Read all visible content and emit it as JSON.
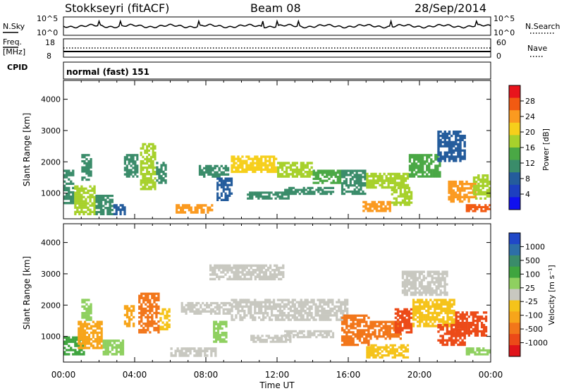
{
  "header": {
    "station": "Stokkseyri (fitACF)",
    "beam": "Beam 08",
    "date": "28/Sep/2014"
  },
  "noise_panel": {
    "left_label": "N.Sky",
    "right_label": "N.Search",
    "left_ticks": [
      "10^5",
      "10^0"
    ],
    "right_ticks": [
      "10^5",
      "10^0"
    ]
  },
  "freq_panel": {
    "left_label_1": "Freq.",
    "left_label_2": "[MHz]",
    "left_ticks": [
      "18",
      "8"
    ],
    "right_ticks": [
      "60",
      "0"
    ],
    "right_label": "Nave"
  },
  "cpid_panel": {
    "label": "CPID",
    "value": "normal (fast) 151"
  },
  "power_colorbar": {
    "label": "Power [dB]",
    "ticks": [
      "28",
      "24",
      "20",
      "16",
      "12",
      "8",
      "4"
    ],
    "colors": [
      "#e8141c",
      "#f25a12",
      "#fb9a20",
      "#f6cf1b",
      "#a7d12c",
      "#4aa845",
      "#3a8c6a",
      "#245c9c",
      "#1d3fc0",
      "#1010f0"
    ]
  },
  "velocity_colorbar": {
    "label": "Velocity [m s⁻¹]",
    "ticks": [
      "1000",
      "500",
      "100",
      "25",
      "-25",
      "-100",
      "-500",
      "-1000"
    ],
    "colors": [
      "#2048c8",
      "#2d6fa8",
      "#3a8c6a",
      "#3fa53f",
      "#8fd060",
      "#c8c8c0",
      "#f5c31a",
      "#f7a51a",
      "#f2761a",
      "#ec4a18",
      "#e0141a"
    ]
  },
  "chart_data": [
    {
      "type": "heatmap",
      "title": "Power",
      "xlabel": "",
      "ylabel": "Slant Range [km]",
      "x_ticks": [
        "00:00",
        "04:00",
        "08:00",
        "12:00",
        "16:00",
        "20:00",
        "00:00"
      ],
      "y_ticks": [
        "1000",
        "2000",
        "3000",
        "4000"
      ],
      "xlim": [
        0,
        24
      ],
      "ylim": [
        180,
        4600
      ],
      "zlim": [
        0,
        30
      ],
      "patches": [
        {
          "t0": 0.0,
          "t1": 0.6,
          "r0": 650,
          "r1": 1750,
          "v": 12
        },
        {
          "t0": 0.6,
          "t1": 1.8,
          "r0": 300,
          "r1": 1250,
          "v": 16
        },
        {
          "t0": 1.0,
          "t1": 1.6,
          "r0": 1400,
          "r1": 2250,
          "v": 12
        },
        {
          "t0": 1.8,
          "t1": 2.8,
          "r0": 300,
          "r1": 950,
          "v": 10
        },
        {
          "t0": 2.8,
          "t1": 3.5,
          "r0": 300,
          "r1": 650,
          "v": 8
        },
        {
          "t0": 3.4,
          "t1": 4.2,
          "r0": 1500,
          "r1": 2250,
          "v": 12
        },
        {
          "t0": 4.3,
          "t1": 5.2,
          "r0": 1100,
          "r1": 2600,
          "v": 18
        },
        {
          "t0": 5.2,
          "t1": 5.8,
          "r0": 1300,
          "r1": 2000,
          "v": 12
        },
        {
          "t0": 6.3,
          "t1": 8.4,
          "r0": 350,
          "r1": 650,
          "v": 22
        },
        {
          "t0": 7.6,
          "t1": 9.3,
          "r0": 1500,
          "r1": 1900,
          "v": 10
        },
        {
          "t0": 8.6,
          "t1": 9.5,
          "r0": 750,
          "r1": 1500,
          "v": 8
        },
        {
          "t0": 9.4,
          "t1": 12.0,
          "r0": 1650,
          "r1": 2200,
          "v": 20
        },
        {
          "t0": 12.0,
          "t1": 14.0,
          "r0": 1500,
          "r1": 2000,
          "v": 18
        },
        {
          "t0": 14.0,
          "t1": 15.6,
          "r0": 1300,
          "r1": 1750,
          "v": 14
        },
        {
          "t0": 10.3,
          "t1": 12.7,
          "r0": 800,
          "r1": 1050,
          "v": 10
        },
        {
          "t0": 12.4,
          "t1": 15.2,
          "r0": 950,
          "r1": 1200,
          "v": 12
        },
        {
          "t0": 15.6,
          "t1": 17.0,
          "r0": 950,
          "r1": 1750,
          "v": 12
        },
        {
          "t0": 16.8,
          "t1": 18.4,
          "r0": 400,
          "r1": 750,
          "v": 22
        },
        {
          "t0": 17.0,
          "t1": 19.4,
          "r0": 1150,
          "r1": 1650,
          "v": 16
        },
        {
          "t0": 19.4,
          "t1": 21.2,
          "r0": 1500,
          "r1": 2250,
          "v": 14
        },
        {
          "t0": 18.4,
          "t1": 19.6,
          "r0": 600,
          "r1": 1200,
          "v": 18
        },
        {
          "t0": 21.0,
          "t1": 22.6,
          "r0": 2000,
          "r1": 3000,
          "v": 8
        },
        {
          "t0": 21.6,
          "t1": 23.2,
          "r0": 700,
          "r1": 1400,
          "v": 22
        },
        {
          "t0": 22.6,
          "t1": 24.0,
          "r0": 400,
          "r1": 650,
          "v": 24
        },
        {
          "t0": 23.0,
          "t1": 24.0,
          "r0": 800,
          "r1": 1600,
          "v": 18
        }
      ]
    },
    {
      "type": "heatmap",
      "title": "Velocity",
      "xlabel": "Time UT",
      "ylabel": "Slant Range [km]",
      "x_ticks": [
        "00:00",
        "04:00",
        "08:00",
        "12:00",
        "16:00",
        "20:00",
        "00:00"
      ],
      "y_ticks": [
        "1000",
        "2000",
        "3000",
        "4000"
      ],
      "xlim": [
        0,
        24
      ],
      "ylim": [
        180,
        4600
      ],
      "zlim": [
        -1000,
        1000
      ],
      "patches": [
        {
          "t0": 0.0,
          "t1": 1.2,
          "r0": 400,
          "r1": 1000,
          "v": 300
        },
        {
          "t0": 0.8,
          "t1": 2.2,
          "r0": 600,
          "r1": 1500,
          "v": -300
        },
        {
          "t0": 1.0,
          "t1": 1.6,
          "r0": 1500,
          "r1": 2200,
          "v": 120
        },
        {
          "t0": 2.2,
          "t1": 3.4,
          "r0": 400,
          "r1": 900,
          "v": 200
        },
        {
          "t0": 3.4,
          "t1": 4.0,
          "r0": 1300,
          "r1": 2000,
          "v": -400
        },
        {
          "t0": 4.2,
          "t1": 5.4,
          "r0": 1100,
          "r1": 2400,
          "v": -500
        },
        {
          "t0": 5.4,
          "t1": 6.0,
          "r0": 1200,
          "r1": 1900,
          "v": -150
        },
        {
          "t0": 6.0,
          "t1": 8.6,
          "r0": 350,
          "r1": 650,
          "v": 60
        },
        {
          "t0": 8.4,
          "t1": 9.2,
          "r0": 800,
          "r1": 1500,
          "v": 150
        },
        {
          "t0": 6.6,
          "t1": 9.4,
          "r0": 1700,
          "r1": 2100,
          "v": 0
        },
        {
          "t0": 9.4,
          "t1": 16.0,
          "r0": 1500,
          "r1": 2200,
          "v": 0
        },
        {
          "t0": 10.5,
          "t1": 12.8,
          "r0": 800,
          "r1": 1050,
          "v": 0
        },
        {
          "t0": 12.4,
          "t1": 15.2,
          "r0": 950,
          "r1": 1200,
          "v": 0
        },
        {
          "t0": 8.2,
          "t1": 12.4,
          "r0": 2800,
          "r1": 3300,
          "v": 0
        },
        {
          "t0": 15.6,
          "t1": 17.2,
          "r0": 700,
          "r1": 1700,
          "v": -500
        },
        {
          "t0": 17.0,
          "t1": 19.4,
          "r0": 300,
          "r1": 750,
          "v": -250
        },
        {
          "t0": 17.2,
          "t1": 19.0,
          "r0": 900,
          "r1": 1500,
          "v": -600
        },
        {
          "t0": 18.6,
          "t1": 19.6,
          "r0": 1100,
          "r1": 1900,
          "v": -800
        },
        {
          "t0": 19.6,
          "t1": 22.0,
          "r0": 1300,
          "r1": 2200,
          "v": -200
        },
        {
          "t0": 19.0,
          "t1": 21.6,
          "r0": 2300,
          "r1": 3100,
          "v": 0
        },
        {
          "t0": 21.0,
          "t1": 22.6,
          "r0": 700,
          "r1": 1400,
          "v": -700
        },
        {
          "t0": 22.0,
          "t1": 23.8,
          "r0": 1000,
          "r1": 1800,
          "v": -800
        },
        {
          "t0": 22.6,
          "t1": 24.0,
          "r0": 400,
          "r1": 650,
          "v": 200
        }
      ]
    }
  ]
}
